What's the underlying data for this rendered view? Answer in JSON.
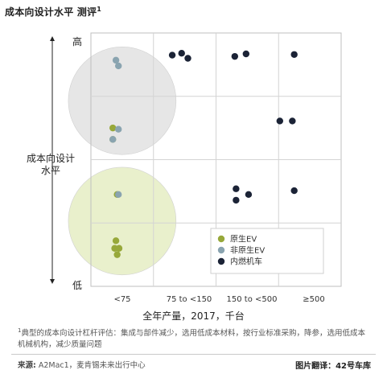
{
  "title": "成本向设计水平 测评",
  "title_sup": "1",
  "colors": {
    "native_ev": "#97a83a",
    "non_native_ev": "#8aa4b0",
    "ice": "#1b2336",
    "circle_top": "#e6e6e6",
    "circle_bottom": "#e9f0cc"
  },
  "chart_data": {
    "type": "scatter",
    "title": "成本向设计水平 测评",
    "ylabel": "成本向设计水平",
    "y_high_label": "高",
    "y_low_label": "低",
    "xlabel": "全年产量，2017，千台",
    "x_categories": [
      "<75",
      "75 to <150",
      "150 to <500",
      "≥500"
    ],
    "y_levels": 4,
    "grid": true,
    "legend_position": "bottom-right",
    "legend": [
      {
        "name": "原生EV",
        "color_key": "native_ev"
      },
      {
        "name": "非原生EV",
        "color_key": "non_native_ev"
      },
      {
        "name": "内燃机车",
        "color_key": "ice"
      }
    ],
    "series": [
      {
        "name": "原生EV",
        "points": [
          {
            "x": 0.35,
            "y": 2.5
          },
          {
            "x": 0.35,
            "y": 2.32
          },
          {
            "x": 0.42,
            "y": 1.45
          },
          {
            "x": 0.4,
            "y": 0.72
          },
          {
            "x": 0.38,
            "y": 0.6
          },
          {
            "x": 0.45,
            "y": 0.6
          },
          {
            "x": 0.42,
            "y": 0.5
          }
        ]
      },
      {
        "name": "非原生EV",
        "points": [
          {
            "x": 0.4,
            "y": 3.57
          },
          {
            "x": 0.44,
            "y": 3.48
          },
          {
            "x": 0.44,
            "y": 2.48
          },
          {
            "x": 0.35,
            "y": 2.32
          },
          {
            "x": 0.44,
            "y": 1.45
          }
        ]
      },
      {
        "name": "内燃机车",
        "points": [
          {
            "x": 1.3,
            "y": 3.65
          },
          {
            "x": 1.45,
            "y": 3.68
          },
          {
            "x": 1.55,
            "y": 3.6
          },
          {
            "x": 2.3,
            "y": 3.63
          },
          {
            "x": 2.48,
            "y": 3.67
          },
          {
            "x": 3.25,
            "y": 3.66
          },
          {
            "x": 3.02,
            "y": 2.61
          },
          {
            "x": 3.22,
            "y": 2.61
          },
          {
            "x": 2.32,
            "y": 1.54
          },
          {
            "x": 2.52,
            "y": 1.45
          },
          {
            "x": 2.32,
            "y": 1.36
          },
          {
            "x": 3.25,
            "y": 1.51
          }
        ]
      }
    ],
    "groupings": [
      {
        "label": "top",
        "center_x": 0.5,
        "center_y": 2.93,
        "radius": 0.85,
        "color_key": "circle_top"
      },
      {
        "label": "bottom",
        "center_x": 0.5,
        "center_y": 1.03,
        "radius": 0.85,
        "color_key": "circle_bottom"
      }
    ]
  },
  "footnote": {
    "sup": "1",
    "text": "典型的成本向设计杠杆评估：集成与部件减少，选用低成本材料，按行业标准采购，降参，选用低成本机械机构，减少质量问题"
  },
  "source": {
    "label": "来源:",
    "text": "A2Mac1，麦肯锡未来出行中心"
  },
  "credit": "图片翻译：42号车库"
}
